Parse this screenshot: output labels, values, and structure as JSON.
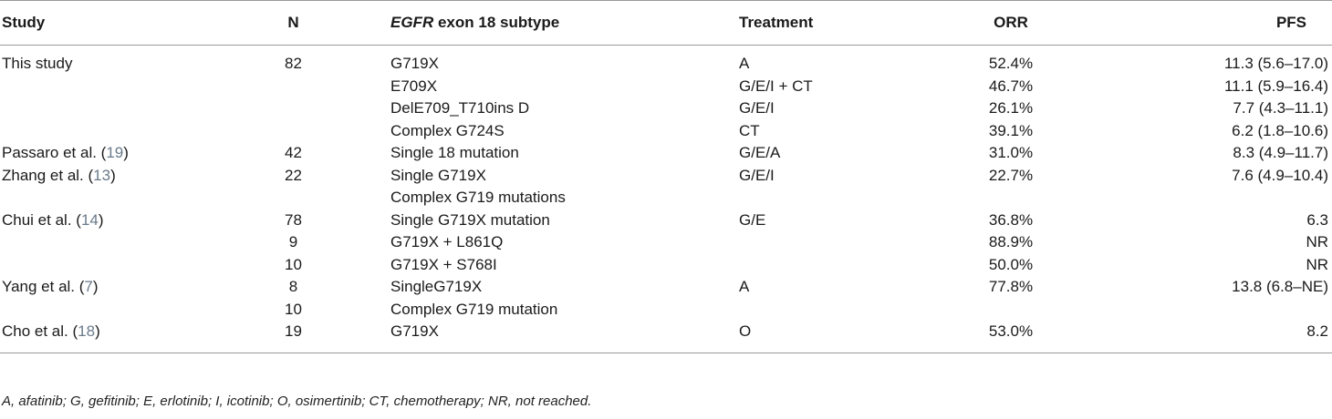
{
  "headers": {
    "study": "Study",
    "n": "N",
    "subtype_gene": "EGFR",
    "subtype_rest": " exon 18 subtype",
    "treatment": "Treatment",
    "orr": "ORR",
    "pfs": "PFS"
  },
  "rows": [
    {
      "study": "This study",
      "ref": "",
      "n": "82",
      "subtype": "G719X",
      "treatment": "A",
      "orr": "52.4%",
      "pfs": "11.3 (5.6–17.0)"
    },
    {
      "study": "",
      "ref": "",
      "n": "",
      "subtype": "E709X",
      "treatment": "G/E/I + CT",
      "orr": "46.7%",
      "pfs": "11.1 (5.9–16.4)"
    },
    {
      "study": "",
      "ref": "",
      "n": "",
      "subtype": "DelE709_T710ins D",
      "treatment": "G/E/I",
      "orr": "26.1%",
      "pfs": "7.7 (4.3–11.1)"
    },
    {
      "study": "",
      "ref": "",
      "n": "",
      "subtype": "Complex G724S",
      "treatment": "CT",
      "orr": "39.1%",
      "pfs": "6.2 (1.8–10.6)"
    },
    {
      "study": "Passaro et al. (",
      "ref": "19",
      "close": ")",
      "n": "42",
      "subtype": "Single 18 mutation",
      "treatment": "G/E/A",
      "orr": "31.0%",
      "pfs": "8.3 (4.9–11.7)"
    },
    {
      "study": "Zhang et al. (",
      "ref": "13",
      "close": ")",
      "n": "22",
      "subtype": "Single G719X",
      "treatment": "G/E/I",
      "orr": "22.7%",
      "pfs": "7.6 (4.9–10.4)"
    },
    {
      "study": "",
      "ref": "",
      "n": "",
      "subtype": "Complex G719 mutations",
      "treatment": "",
      "orr": "",
      "pfs": ""
    },
    {
      "study": "Chui et al. (",
      "ref": "14",
      "close": ")",
      "n": "78",
      "subtype": "Single G719X mutation",
      "treatment": "G/E",
      "orr": "36.8%",
      "pfs": "6.3"
    },
    {
      "study": "",
      "ref": "",
      "n": "9",
      "subtype": "G719X + L861Q",
      "treatment": "",
      "orr": "88.9%",
      "pfs": "NR"
    },
    {
      "study": "",
      "ref": "",
      "n": "10",
      "subtype": "G719X + S768I",
      "treatment": "",
      "orr": "50.0%",
      "pfs": "NR"
    },
    {
      "study": "Yang et al. (",
      "ref": "7",
      "close": ")",
      "n": "8",
      "subtype": "SingleG719X",
      "treatment": "A",
      "orr": "77.8%",
      "pfs": "13.8 (6.8–NE)"
    },
    {
      "study": "",
      "ref": "",
      "n": "10",
      "subtype": "Complex G719 mutation",
      "treatment": "",
      "orr": "",
      "pfs": ""
    },
    {
      "study": "Cho et al. (",
      "ref": "18",
      "close": ")",
      "n": "19",
      "subtype": "G719X",
      "treatment": "O",
      "orr": "53.0%",
      "pfs": "8.2"
    }
  ],
  "footnote": "A, afatinib; G, gefitinib; E, erlotinib; I, icotinib; O, osimertinib; CT, chemotherapy; NR, not reached."
}
